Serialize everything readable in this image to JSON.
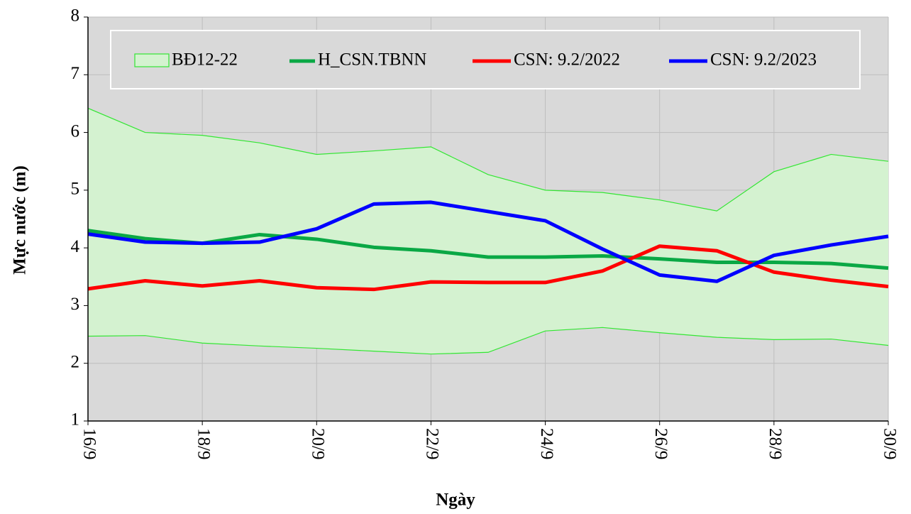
{
  "chart_data": {
    "type": "line",
    "x_label": "Ngày",
    "y_label": "Mực nước (m)",
    "categories": [
      "16/9",
      null,
      "18/9",
      null,
      "20/9",
      null,
      "22/9",
      null,
      "24/9",
      null,
      "26/9",
      null,
      "28/9",
      null,
      "30/9"
    ],
    "ylim": [
      1,
      8
    ],
    "yticks": [
      1,
      2,
      3,
      4,
      5,
      6,
      7,
      8
    ],
    "grid": true,
    "legend": "top",
    "series": [
      {
        "name": "BĐ12-22",
        "type": "band",
        "color": "#33e633",
        "fill": "#d4f2d0",
        "upper": [
          6.42,
          6.0,
          5.95,
          5.82,
          5.62,
          5.68,
          5.75,
          5.27,
          5.0,
          4.96,
          4.83,
          4.64,
          5.32,
          5.62,
          5.5
        ],
        "lower": [
          2.47,
          2.48,
          2.35,
          2.3,
          2.26,
          2.21,
          2.16,
          2.19,
          2.56,
          2.62,
          2.53,
          2.45,
          2.41,
          2.42,
          2.31
        ]
      },
      {
        "name": "H_CSN.TBNN",
        "color": "#0aa845",
        "values": [
          4.3,
          4.16,
          4.08,
          4.23,
          4.15,
          4.01,
          3.95,
          3.84,
          3.84,
          3.86,
          3.81,
          3.75,
          3.75,
          3.73,
          3.65
        ]
      },
      {
        "name": "CSN: 9.2/2022",
        "color": "#ff0000",
        "values": [
          3.29,
          3.43,
          3.34,
          3.43,
          3.31,
          3.28,
          3.41,
          3.4,
          3.4,
          3.6,
          4.03,
          3.95,
          3.58,
          3.44,
          3.33
        ]
      },
      {
        "name": "CSN: 9.2/2023",
        "color": "#0000ff",
        "values": [
          4.24,
          4.1,
          4.08,
          4.1,
          4.33,
          4.76,
          4.79,
          4.63,
          4.47,
          3.98,
          3.53,
          3.42,
          3.87,
          4.05,
          4.2
        ]
      }
    ]
  }
}
